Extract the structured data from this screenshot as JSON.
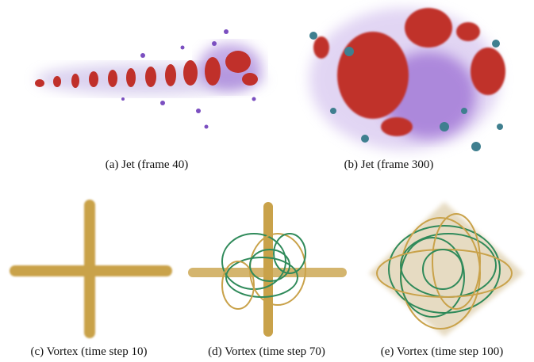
{
  "figure": {
    "subfigures": [
      {
        "caption": "(a) Jet (frame 40)"
      },
      {
        "caption": "(b) Jet (frame 300)"
      },
      {
        "caption": "(c) Vortex (time step 10)"
      },
      {
        "caption": "(d) Vortex (time step 70)"
      },
      {
        "caption": "(e) Vortex (time step 100)"
      }
    ]
  }
}
